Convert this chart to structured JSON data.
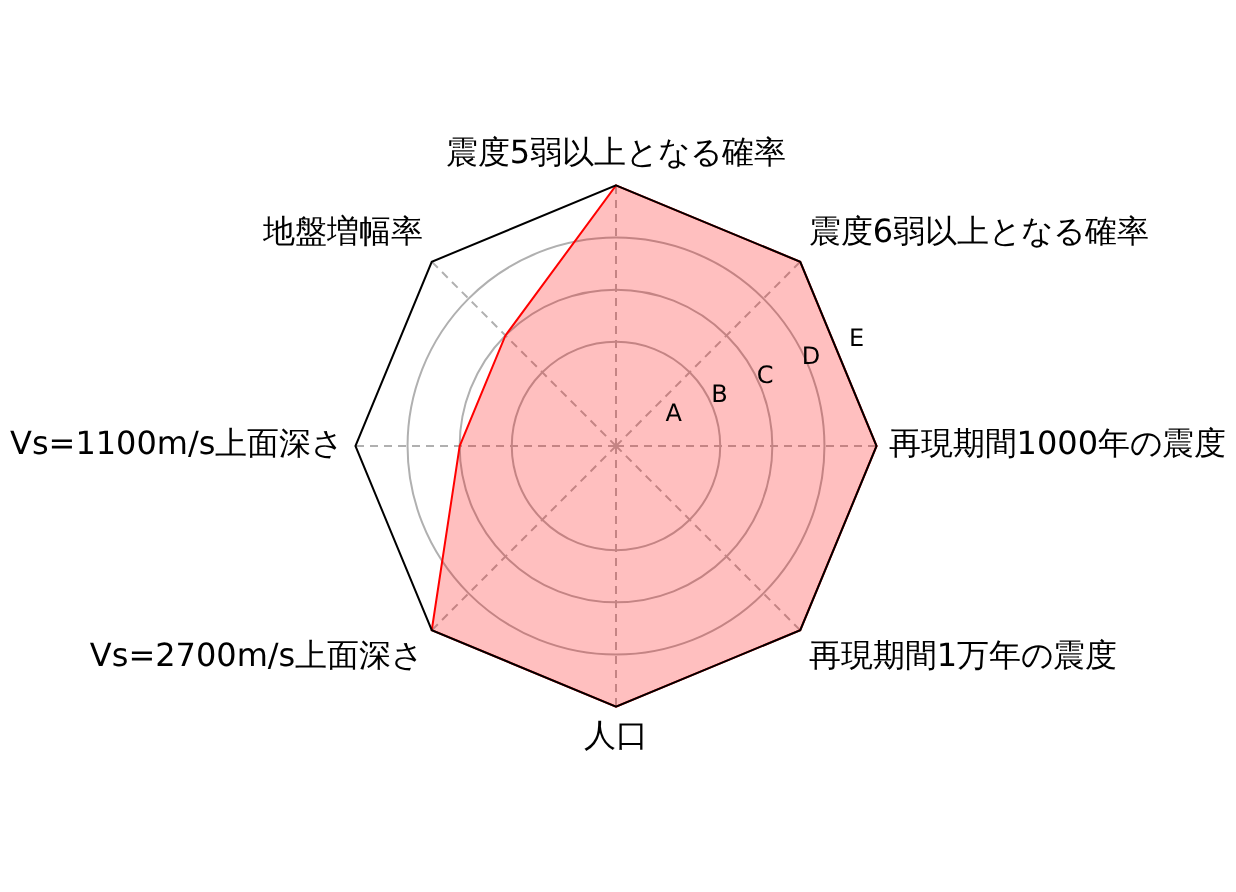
{
  "chart_data": {
    "type": "radar",
    "categories": [
      "震度5弱以上となる確率",
      "震度6弱以上となる確率",
      "再現期間1000年の震度",
      "再現期間1万年の震度",
      "人口",
      "Vs=2700m/s上面深さ",
      "Vs=1100m/s上面深さ",
      "地盤増幅率"
    ],
    "series": [
      {
        "color": "#ff0000",
        "values": [
          5,
          5,
          5,
          5,
          5,
          5,
          3,
          3
        ]
      }
    ],
    "ylim": [
      0,
      5
    ],
    "yticks": [
      {
        "value": 1,
        "label": "A"
      },
      {
        "value": 2,
        "label": "B"
      },
      {
        "value": 3,
        "label": "C"
      },
      {
        "value": 4,
        "label": "D"
      },
      {
        "value": 5,
        "label": "E"
      }
    ],
    "grid": true,
    "legend": false,
    "marker": "none"
  }
}
